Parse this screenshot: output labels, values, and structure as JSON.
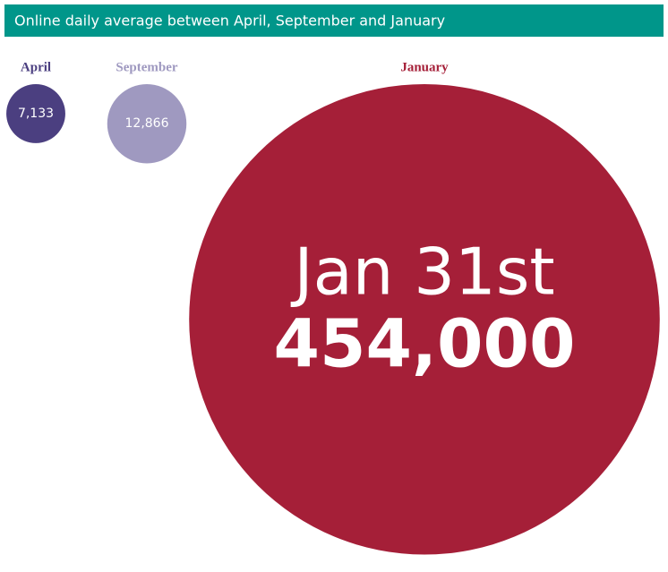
{
  "chart_data": {
    "type": "bubble",
    "title": "Online daily average between April, September and January",
    "categories": [
      "April",
      "September",
      "January"
    ],
    "values": [
      7133,
      12866,
      454000
    ],
    "value_labels": [
      "7,133",
      "12,866",
      "454,000"
    ],
    "colors": [
      "#4b3f80",
      "#9f99c0",
      "#a51f38"
    ],
    "annotation": "Jan 31st",
    "title_bar_color": "#00968a"
  }
}
